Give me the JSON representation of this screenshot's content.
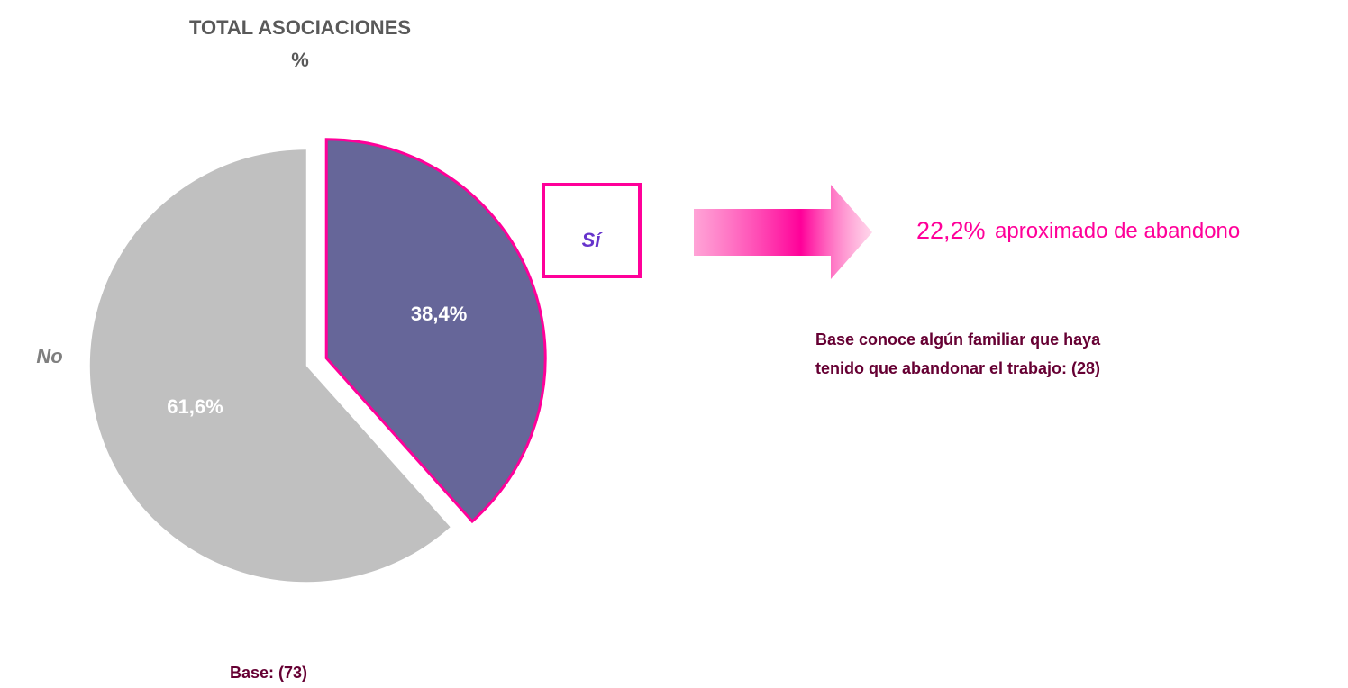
{
  "chart_data": {
    "type": "pie",
    "title": "TOTAL ASOCIACIONES",
    "subtitle": "%",
    "categories": [
      "Sí",
      "No"
    ],
    "values": [
      38.4,
      61.6
    ],
    "value_labels": [
      "38,4%",
      "61,6%"
    ],
    "colors": [
      "#666699",
      "#c0c0c0"
    ],
    "highlight_color": "#ff0099",
    "annotation_value": "22,2%",
    "annotation_text": "aproximado de abandono",
    "base_note": [
      "Base conoce algún familiar que haya",
      "tenido que abandonar el trabajo: (28)"
    ],
    "base": "Base: (73)"
  }
}
